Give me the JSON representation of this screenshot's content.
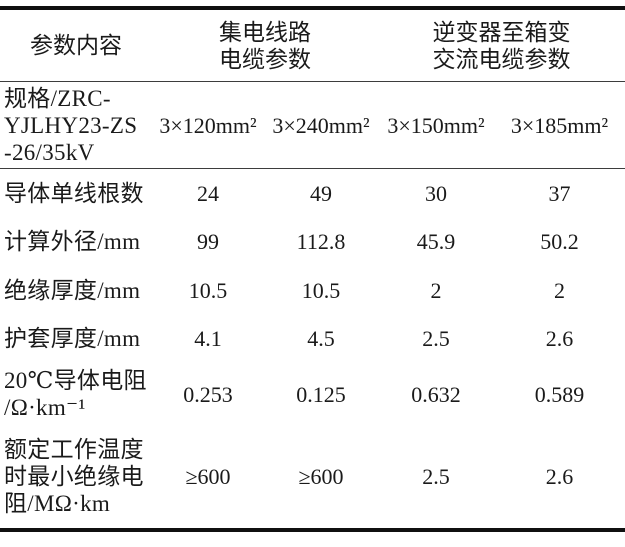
{
  "table": {
    "title_semantic": "cable-parameter-comparison-table",
    "header": {
      "col1": "参数内容",
      "group1": "集电线路\n电缆参数",
      "group2": "逆变器至箱变\n交流电缆参数"
    },
    "rows": [
      {
        "label": "规格/ZRC-\nYJLHY23-ZS\n-26/35kV",
        "values": [
          "3×120mm²",
          "3×240mm²",
          "3×150mm²",
          "3×185mm²"
        ]
      },
      {
        "label": "导体单线根数",
        "values": [
          "24",
          "49",
          "30",
          "37"
        ]
      },
      {
        "label": "计算外径/mm",
        "values": [
          "99",
          "112.8",
          "45.9",
          "50.2"
        ]
      },
      {
        "label": "绝缘厚度/mm",
        "values": [
          "10.5",
          "10.5",
          "2",
          "2"
        ]
      },
      {
        "label": "护套厚度/mm",
        "values": [
          "4.1",
          "4.5",
          "2.5",
          "2.6"
        ]
      },
      {
        "label": "20℃导体电阻\n/Ω·km⁻¹",
        "values": [
          "0.253",
          "0.125",
          "0.632",
          "0.589"
        ]
      },
      {
        "label": "额定工作温度\n时最小绝缘电\n阻/MΩ·km",
        "values": [
          "≥600",
          "≥600",
          "2.5",
          "2.6"
        ]
      }
    ]
  },
  "colors": {
    "text": "#1a1a1a",
    "thick_rule": "#101010",
    "thin_rule": "#3d3d3d",
    "background": "#ffffff"
  }
}
